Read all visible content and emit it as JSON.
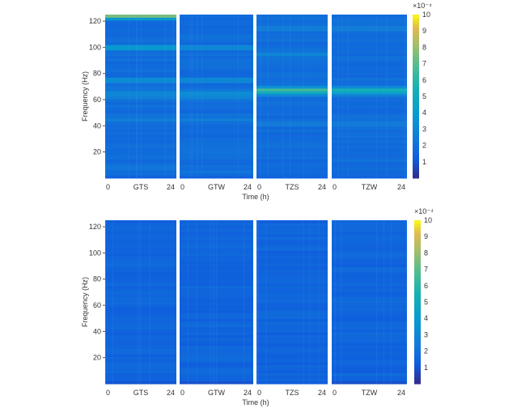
{
  "chart_data": [
    {
      "type": "heatmap",
      "ylabel": "Frequency (Hz)",
      "xlabel": "Time (h)",
      "ylim": [
        0,
        125
      ],
      "yticks": [
        20,
        40,
        60,
        80,
        100,
        120
      ],
      "xtick_labels": [
        "0",
        "24"
      ],
      "colorbar": {
        "min": 0,
        "max": 10,
        "ticks": [
          1,
          2,
          3,
          4,
          5,
          6,
          7,
          8,
          9,
          10
        ],
        "exponent_label": "×10⁻⁴"
      },
      "background_level": 1.6,
      "panels": [
        {
          "name": "GTS",
          "bands": [
            {
              "freq": 124,
              "value": 7.5
            },
            {
              "freq": 100,
              "value": 3.8
            },
            {
              "freq": 75,
              "value": 3.2
            },
            {
              "freq": 65,
              "value": 3.0
            },
            {
              "freq": 62,
              "value": 2.6
            },
            {
              "freq": 45,
              "value": 2.6
            },
            {
              "freq": 8,
              "value": 2.2
            }
          ]
        },
        {
          "name": "GTW",
          "bands": [
            {
              "freq": 100,
              "value": 3.0
            },
            {
              "freq": 75,
              "value": 3.0
            },
            {
              "freq": 65,
              "value": 3.2
            },
            {
              "freq": 62,
              "value": 2.8
            },
            {
              "freq": 45,
              "value": 2.6
            },
            {
              "freq": 5,
              "value": 2.2
            }
          ]
        },
        {
          "name": "TZS",
          "bands": [
            {
              "freq": 68,
              "value": 6.5
            },
            {
              "freq": 66,
              "value": 5.0
            },
            {
              "freq": 95,
              "value": 3.0
            },
            {
              "freq": 115,
              "value": 2.5
            },
            {
              "freq": 42,
              "value": 2.4
            }
          ]
        },
        {
          "name": "TZW",
          "bands": [
            {
              "freq": 68,
              "value": 5.5
            },
            {
              "freq": 66,
              "value": 4.5
            },
            {
              "freq": 115,
              "value": 2.5
            },
            {
              "freq": 42,
              "value": 2.4
            }
          ]
        }
      ]
    },
    {
      "type": "heatmap",
      "ylabel": "Frequency (Hz)",
      "xlabel": "Time (h)",
      "ylim": [
        0,
        125
      ],
      "yticks": [
        20,
        40,
        60,
        80,
        100,
        120
      ],
      "xtick_labels": [
        "0",
        "24"
      ],
      "colorbar": {
        "min": 0,
        "max": 10,
        "ticks": [
          1,
          2,
          3,
          4,
          5,
          6,
          7,
          8,
          9,
          10
        ],
        "exponent_label": "×10⁻⁴"
      },
      "background_level": 1.3,
      "panels": [
        {
          "name": "GTS",
          "bands": []
        },
        {
          "name": "GTW",
          "bands": []
        },
        {
          "name": "TZS",
          "bands": []
        },
        {
          "name": "TZW",
          "bands": []
        }
      ]
    }
  ]
}
